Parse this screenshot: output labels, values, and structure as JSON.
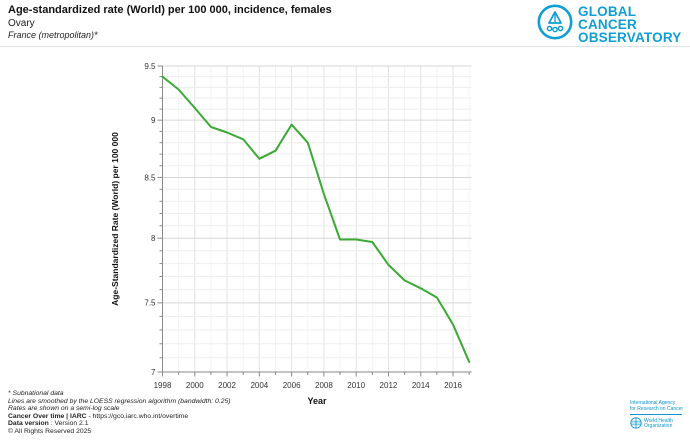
{
  "header": {
    "title": "Age-standardized rate (World) per 100 000, incidence, females",
    "subtitle": "Ovary",
    "region": "France (metropolitan)*"
  },
  "logo": {
    "line1": "GLOBAL CANCER",
    "line2": "OBSERVATORY",
    "color": "#0f9fd6"
  },
  "chart_data": {
    "type": "line",
    "title": "Age-standardized rate (World) per 100 000, incidence, females",
    "subtitle": "Ovary — France (metropolitan)",
    "xlabel": "Year",
    "ylabel": "Age-Standardized Rate (World) per 100 000",
    "yscale": "semi-log",
    "ylim": [
      7,
      9.5
    ],
    "yticks_major": [
      7,
      7.5,
      8,
      8.5,
      9,
      9.5
    ],
    "ytick_minor_step": 0.1,
    "xticks_labeled": [
      1998,
      2000,
      2002,
      2004,
      2006,
      2008,
      2010,
      2012,
      2014,
      2016
    ],
    "x": [
      1998,
      1999,
      2000,
      2001,
      2002,
      2003,
      2004,
      2005,
      2006,
      2007,
      2008,
      2009,
      2010,
      2011,
      2012,
      2013,
      2014,
      2015,
      2016,
      2017
    ],
    "series": [
      {
        "name": "Ovary, females, France (metropolitan) — incidence",
        "color": "#3aaa35",
        "values": [
          9.4,
          9.28,
          9.11,
          8.94,
          8.89,
          8.83,
          8.66,
          8.73,
          8.96,
          8.8,
          8.36,
          7.99,
          7.99,
          7.97,
          7.79,
          7.67,
          7.61,
          7.54,
          7.34,
          7.07
        ]
      }
    ],
    "grid": true,
    "legend_position": "none"
  },
  "footer": {
    "notes": [
      "* Subnational data",
      "Lines are smoothed by the LOESS regression algorithm (bandwidth: 0.25)",
      "Rates are shown on a semi-log scale"
    ],
    "source_bold": "Cancer Over time | IARC",
    "source_rest": " - https://gco.iarc.who.int/overtime",
    "version_bold": "Data version",
    "version_rest": " : Version 2.1",
    "copyright": "© All Rights Reserved 2025"
  },
  "footer_logos": {
    "iarc_line1": "International Agency",
    "iarc_line2": "for Research on Cancer",
    "who_line1": "World Health",
    "who_line2": "Organization",
    "color": "#0f95d0"
  }
}
